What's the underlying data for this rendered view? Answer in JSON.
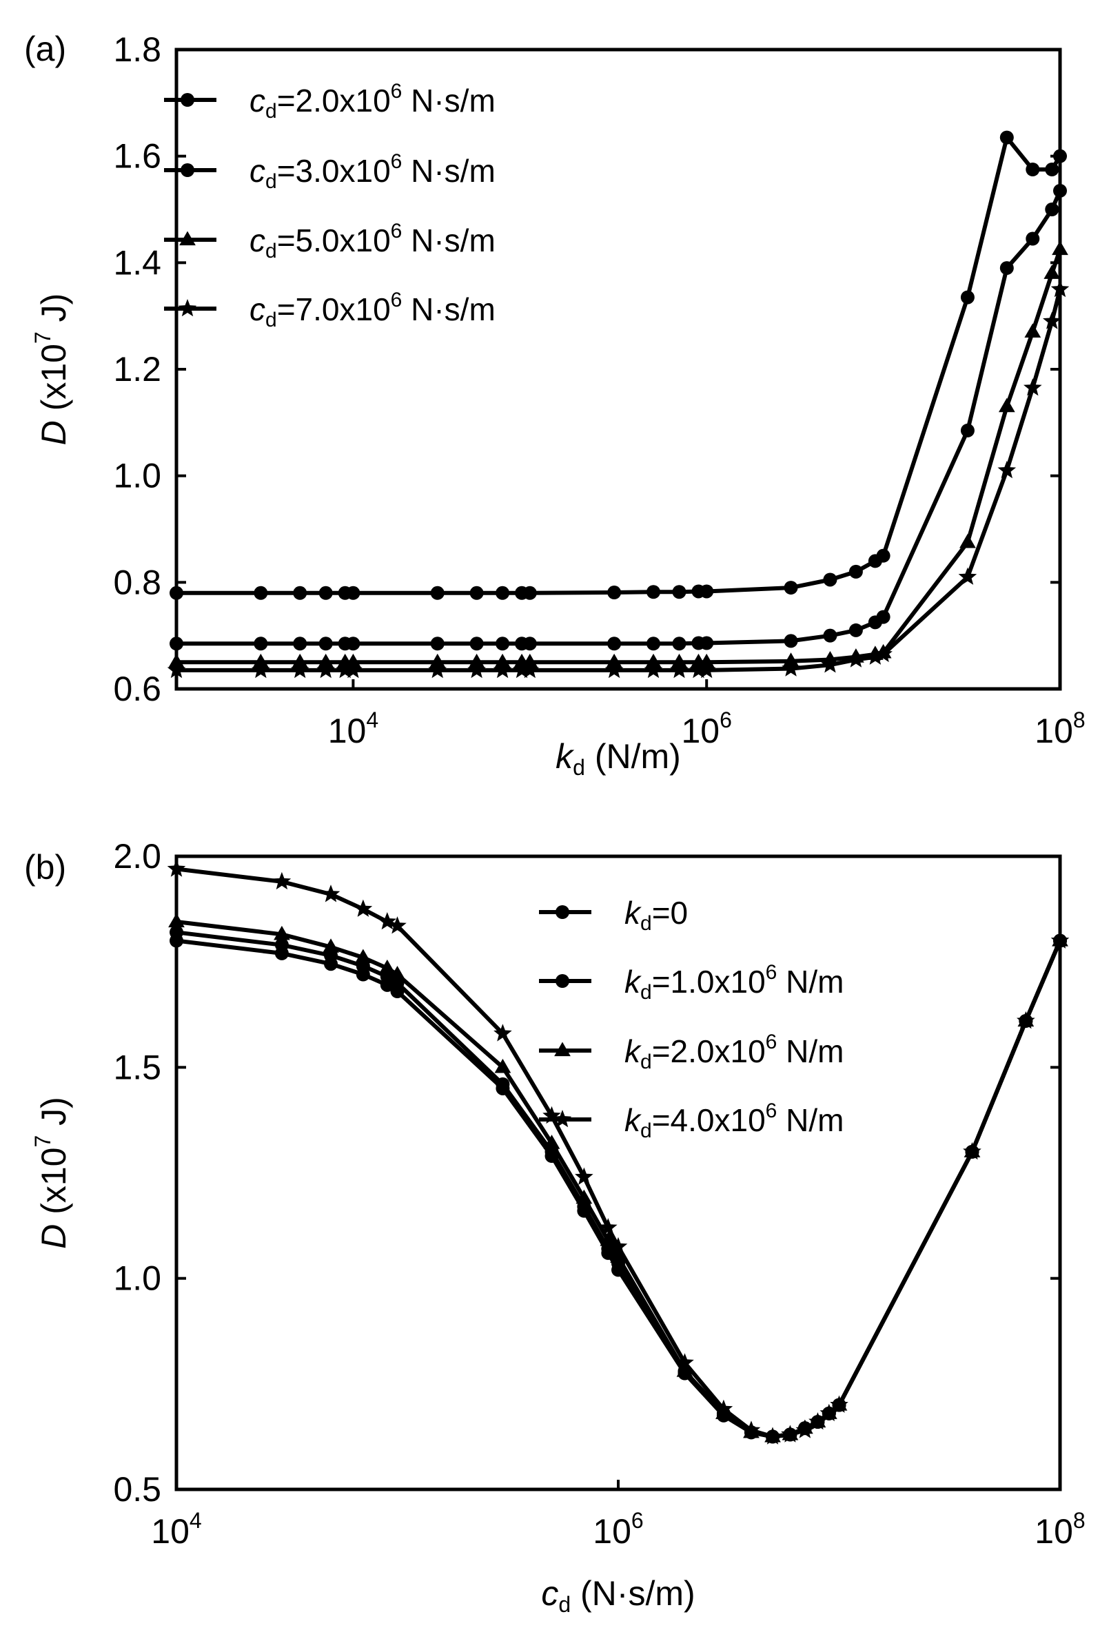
{
  "chart_data": [
    {
      "type": "line",
      "panel_label": "(a)",
      "xlabel": {
        "var": "k",
        "sub": "d",
        "rest": " (N/m)"
      },
      "ylabel": {
        "var": "D",
        "rest1": " (x10",
        "exp": "7",
        "rest2": " J)"
      },
      "xscale": "log",
      "xlim": [
        1000,
        100000000
      ],
      "ylim": [
        0.6,
        1.8
      ],
      "xticks": [
        {
          "value": 10000,
          "base": "10",
          "exp": "4"
        },
        {
          "value": 1000000,
          "base": "10",
          "exp": "6"
        },
        {
          "value": 100000000,
          "base": "10",
          "exp": "8"
        }
      ],
      "yticks": [
        {
          "value": 0.6,
          "label": "0.6"
        },
        {
          "value": 0.8,
          "label": "0.8"
        },
        {
          "value": 1.0,
          "label": "1.0"
        },
        {
          "value": 1.2,
          "label": "1.2"
        },
        {
          "value": 1.4,
          "label": "1.4"
        },
        {
          "value": 1.6,
          "label": "1.6"
        },
        {
          "value": 1.8,
          "label": "1.8"
        }
      ],
      "grid": false,
      "legend_position": "top-left",
      "x": [
        1000,
        3000,
        5000,
        7000,
        9000,
        10000,
        30000,
        50000,
        70000,
        90000,
        100000,
        300000,
        500000,
        700000,
        900000,
        1000000,
        3000000,
        5000000,
        7000000,
        9000000,
        10000000,
        30000000,
        50000000,
        70000000,
        90000000,
        100000000
      ],
      "series": [
        {
          "name": {
            "var": "c",
            "sub": "d",
            "mid": "=2.0x10",
            "exp": "6",
            "unit": " N·s/m"
          },
          "marker": "circle",
          "values": [
            0.78,
            0.78,
            0.78,
            0.78,
            0.78,
            0.78,
            0.78,
            0.78,
            0.78,
            0.78,
            0.78,
            0.781,
            0.782,
            0.782,
            0.783,
            0.783,
            0.79,
            0.805,
            0.82,
            0.84,
            0.85,
            1.335,
            1.635,
            1.575,
            1.575,
            1.6
          ]
        },
        {
          "name": {
            "var": "c",
            "sub": "d",
            "mid": "=3.0x10",
            "exp": "6",
            "unit": " N·s/m"
          },
          "marker": "circle",
          "values": [
            0.685,
            0.685,
            0.685,
            0.685,
            0.685,
            0.685,
            0.685,
            0.685,
            0.685,
            0.685,
            0.685,
            0.685,
            0.685,
            0.685,
            0.686,
            0.686,
            0.69,
            0.7,
            0.71,
            0.725,
            0.735,
            1.085,
            1.39,
            1.445,
            1.5,
            1.535
          ]
        },
        {
          "name": {
            "var": "c",
            "sub": "d",
            "mid": "=5.0x10",
            "exp": "6",
            "unit": " N·s/m"
          },
          "marker": "triangle",
          "values": [
            0.65,
            0.65,
            0.65,
            0.65,
            0.65,
            0.65,
            0.65,
            0.65,
            0.65,
            0.65,
            0.65,
            0.65,
            0.65,
            0.65,
            0.65,
            0.65,
            0.652,
            0.655,
            0.66,
            0.665,
            0.668,
            0.875,
            1.13,
            1.27,
            1.38,
            1.425
          ]
        },
        {
          "name": {
            "var": "c",
            "sub": "d",
            "mid": "=7.0x10",
            "exp": "6",
            "unit": " N·s/m"
          },
          "marker": "star",
          "values": [
            0.635,
            0.635,
            0.635,
            0.635,
            0.635,
            0.635,
            0.635,
            0.635,
            0.635,
            0.635,
            0.635,
            0.635,
            0.635,
            0.635,
            0.635,
            0.635,
            0.638,
            0.645,
            0.655,
            0.66,
            0.665,
            0.81,
            1.01,
            1.165,
            1.29,
            1.35
          ]
        }
      ]
    },
    {
      "type": "line",
      "panel_label": "(b)",
      "xlabel": {
        "var": "c",
        "sub": "d",
        "rest": " (N·s/m)"
      },
      "ylabel": {
        "var": "D",
        "rest1": " (x10",
        "exp": "7",
        "rest2": " J)"
      },
      "xscale": "log",
      "xlim": [
        10000,
        100000000
      ],
      "ylim": [
        0.5,
        2.0
      ],
      "xticks": [
        {
          "value": 10000,
          "base": "10",
          "exp": "4"
        },
        {
          "value": 1000000,
          "base": "10",
          "exp": "6"
        },
        {
          "value": 100000000,
          "base": "10",
          "exp": "8"
        }
      ],
      "yticks": [
        {
          "value": 0.5,
          "label": "0.5"
        },
        {
          "value": 1.0,
          "label": "1.0"
        },
        {
          "value": 1.5,
          "label": "1.5"
        },
        {
          "value": 2.0,
          "label": "2.0"
        }
      ],
      "grid": false,
      "legend_position": "right",
      "x": [
        10000,
        30000,
        50000,
        70000,
        90000,
        100000,
        300000,
        500000,
        700000,
        900000,
        1000000,
        2000000,
        3000000,
        4000000,
        5000000,
        6000000,
        7000000,
        8000000,
        9000000,
        10000000,
        40000000,
        70000000,
        100000000
      ],
      "series": [
        {
          "name": {
            "var": "k",
            "sub": "d",
            "mid": "=0",
            "exp": "",
            "unit": ""
          },
          "marker": "circle",
          "values": [
            1.8,
            1.77,
            1.745,
            1.72,
            1.695,
            1.68,
            1.45,
            1.29,
            1.16,
            1.06,
            1.02,
            0.775,
            0.675,
            0.635,
            0.625,
            0.63,
            0.645,
            0.66,
            0.68,
            0.7,
            1.3,
            1.61,
            1.8
          ]
        },
        {
          "name": {
            "var": "k",
            "sub": "d",
            "mid": "=1.0x10",
            "exp": "6",
            "unit": " N/m"
          },
          "marker": "circle",
          "values": [
            1.82,
            1.79,
            1.765,
            1.74,
            1.715,
            1.7,
            1.46,
            1.3,
            1.17,
            1.07,
            1.035,
            0.78,
            0.68,
            0.635,
            0.625,
            0.63,
            0.645,
            0.66,
            0.68,
            0.7,
            1.3,
            1.61,
            1.8
          ]
        },
        {
          "name": {
            "var": "k",
            "sub": "d",
            "mid": "=2.0x10",
            "exp": "6",
            "unit": " N/m"
          },
          "marker": "triangle",
          "values": [
            1.845,
            1.815,
            1.785,
            1.76,
            1.735,
            1.72,
            1.5,
            1.32,
            1.19,
            1.09,
            1.05,
            0.78,
            0.68,
            0.635,
            0.625,
            0.63,
            0.645,
            0.66,
            0.68,
            0.7,
            1.3,
            1.61,
            1.8
          ]
        },
        {
          "name": {
            "var": "k",
            "sub": "d",
            "mid": "=4.0x10",
            "exp": "6",
            "unit": " N/m"
          },
          "marker": "star",
          "values": [
            1.97,
            1.94,
            1.91,
            1.875,
            1.845,
            1.835,
            1.58,
            1.385,
            1.24,
            1.12,
            1.075,
            0.8,
            0.69,
            0.64,
            0.625,
            0.63,
            0.64,
            0.66,
            0.68,
            0.7,
            1.3,
            1.61,
            1.8
          ]
        }
      ]
    }
  ],
  "colors": {
    "line": "#000000",
    "background": "#ffffff"
  }
}
